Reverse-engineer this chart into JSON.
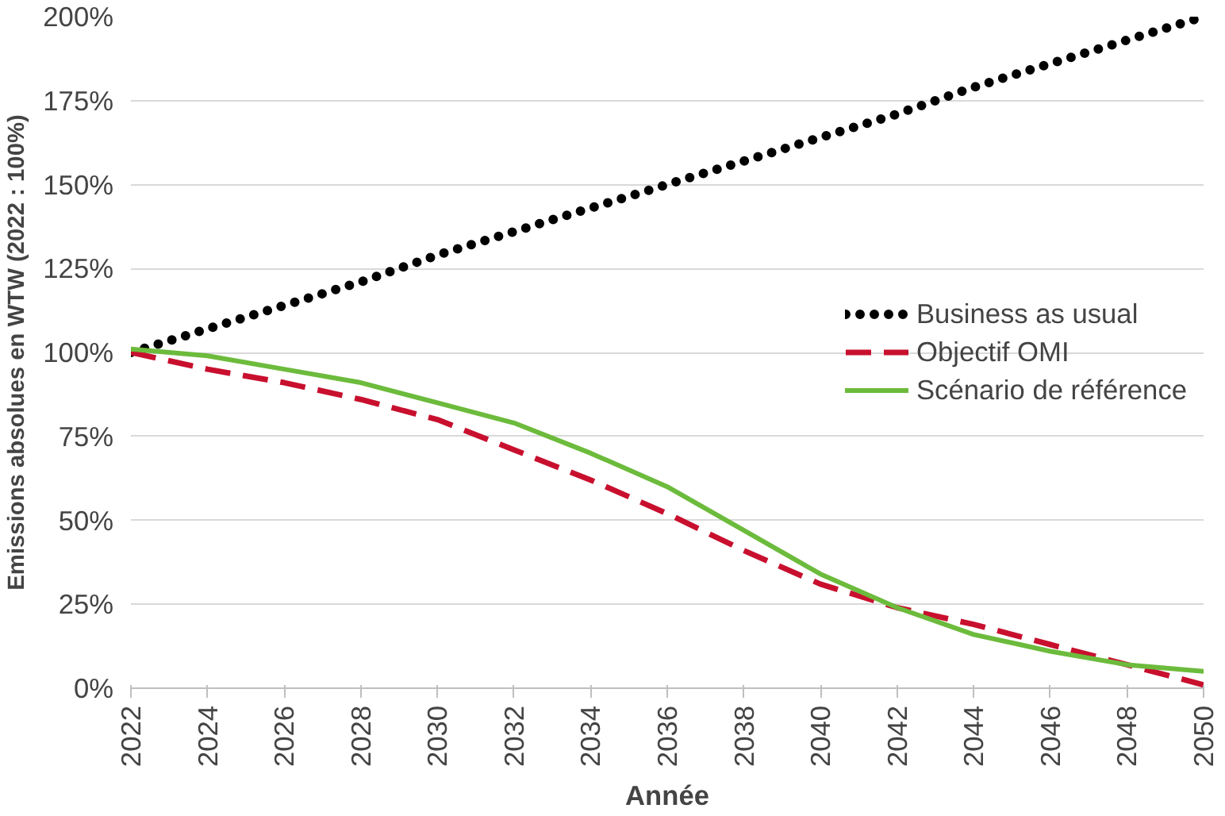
{
  "chart_data": {
    "type": "line",
    "xlabel": "Année",
    "ylabel": "Emissions absolues en WTW (2022 : 100%)",
    "x": [
      2022,
      2024,
      2026,
      2028,
      2030,
      2032,
      2034,
      2036,
      2038,
      2040,
      2042,
      2044,
      2046,
      2048,
      2050
    ],
    "series": [
      {
        "name": "Business as usual",
        "color": "#000000",
        "line_style": "dotted",
        "values": [
          100,
          107,
          114,
          121,
          129,
          136,
          143,
          150,
          157,
          164,
          171,
          179,
          186,
          193,
          200
        ]
      },
      {
        "name": "Objectif OMI",
        "color": "#c8102e",
        "line_style": "dashed",
        "values": [
          100,
          95,
          91,
          86,
          80,
          71,
          62,
          52,
          41,
          31,
          24,
          19,
          13,
          7,
          1
        ]
      },
      {
        "name": "Scénario de référence",
        "color": "#6cbb3c",
        "line_style": "solid",
        "values": [
          101,
          99,
          95,
          91,
          85,
          79,
          70,
          60,
          47,
          34,
          24,
          16,
          11,
          7,
          5
        ]
      }
    ],
    "xlim": [
      2022,
      2050
    ],
    "xticks": [
      2022,
      2024,
      2026,
      2028,
      2030,
      2032,
      2034,
      2036,
      2038,
      2040,
      2042,
      2044,
      2046,
      2048,
      2050
    ],
    "ylim": [
      0,
      200
    ],
    "yticks": [
      {
        "value": 0,
        "label": "0%"
      },
      {
        "value": 25,
        "label": "25%"
      },
      {
        "value": 50,
        "label": "50%"
      },
      {
        "value": 75,
        "label": "75%"
      },
      {
        "value": 100,
        "label": "100%"
      },
      {
        "value": 125,
        "label": "125%"
      },
      {
        "value": 150,
        "label": "150%"
      },
      {
        "value": 175,
        "label": "175%"
      },
      {
        "value": 200,
        "label": "200%"
      }
    ],
    "grid": "y",
    "legend": "right",
    "marker": "none"
  }
}
